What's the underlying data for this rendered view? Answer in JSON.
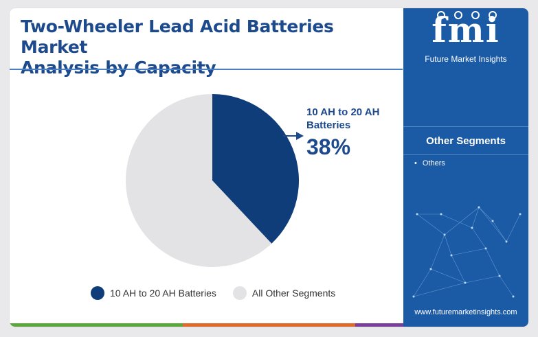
{
  "header": {
    "title_line1": "Two-Wheeler Lead Acid Batteries Market",
    "title_line2": "Analysis by Capacity"
  },
  "chart_data": {
    "type": "pie",
    "slices": [
      {
        "label": "10 AH to 20 AH Batteries",
        "value": 38,
        "color": "#0f3d7a"
      },
      {
        "label": "All Other Segments",
        "value": 62,
        "color": "#e3e3e5"
      }
    ],
    "callout": {
      "label": "10 AH to 20 AH Batteries",
      "value": "38%"
    },
    "legend": {
      "position": "bottom",
      "items": [
        "10 AH to 20 AH Batteries",
        "All Other Segments"
      ]
    }
  },
  "sidebar": {
    "logo_text": "fmi",
    "logo_subtitle": "Future Market Insights",
    "segments_title": "Other Segments",
    "segments": [
      "Others"
    ],
    "website": "www.futuremarketinsights.com"
  },
  "colors": {
    "title": "#1d4a8c",
    "sidebar_bg": "#1b5ba5",
    "bottom_bar": [
      "#5aa83c",
      "#e06a2a",
      "#7a3f9a"
    ]
  }
}
